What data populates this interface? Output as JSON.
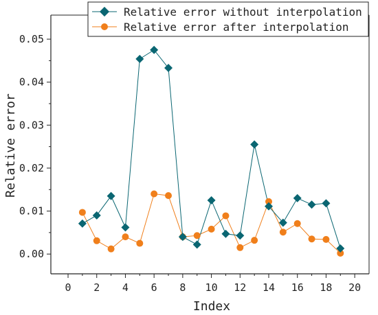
{
  "chart_data": {
    "type": "line",
    "xlabel": "Index",
    "ylabel": "Relative error",
    "xlim": [
      -1.2,
      21
    ],
    "ylim": [
      -0.0046,
      0.0556
    ],
    "x_ticks": [
      0,
      2,
      4,
      6,
      8,
      10,
      12,
      14,
      16,
      18,
      20
    ],
    "x_minor_ticks": [
      1,
      3,
      5,
      7,
      9,
      11,
      13,
      15,
      17,
      19
    ],
    "y_ticks": [
      0.0,
      0.01,
      0.02,
      0.03,
      0.04,
      0.05
    ],
    "x_tick_labels": [
      "0",
      "2",
      "4",
      "6",
      "8",
      "10",
      "12",
      "14",
      "16",
      "18",
      "20"
    ],
    "y_tick_labels": [
      "0.00",
      "0.01",
      "0.02",
      "0.03",
      "0.04",
      "0.05"
    ],
    "legend_position": "top-right",
    "grid": false,
    "x": [
      1,
      2,
      3,
      4,
      5,
      6,
      7,
      8,
      9,
      10,
      11,
      12,
      13,
      14,
      15,
      16,
      17,
      18,
      19
    ],
    "series": [
      {
        "name": "Relative error without interpolation",
        "color": "#0a6672",
        "marker": "diamond",
        "values": [
          0.0071,
          0.009,
          0.0135,
          0.0062,
          0.0454,
          0.0475,
          0.0433,
          0.004,
          0.0022,
          0.0125,
          0.0047,
          0.0043,
          0.0255,
          0.0111,
          0.0073,
          0.013,
          0.0115,
          0.0118,
          0.0013
        ]
      },
      {
        "name": "Relative error after interpolation",
        "color": "#f07f1b",
        "marker": "circle",
        "values": [
          0.0097,
          0.0031,
          0.0012,
          0.004,
          0.0025,
          0.014,
          0.0136,
          0.004,
          0.0043,
          0.0058,
          0.0089,
          0.0015,
          0.0032,
          0.0122,
          0.0051,
          0.0071,
          0.0035,
          0.0034,
          0.0002
        ]
      }
    ]
  }
}
